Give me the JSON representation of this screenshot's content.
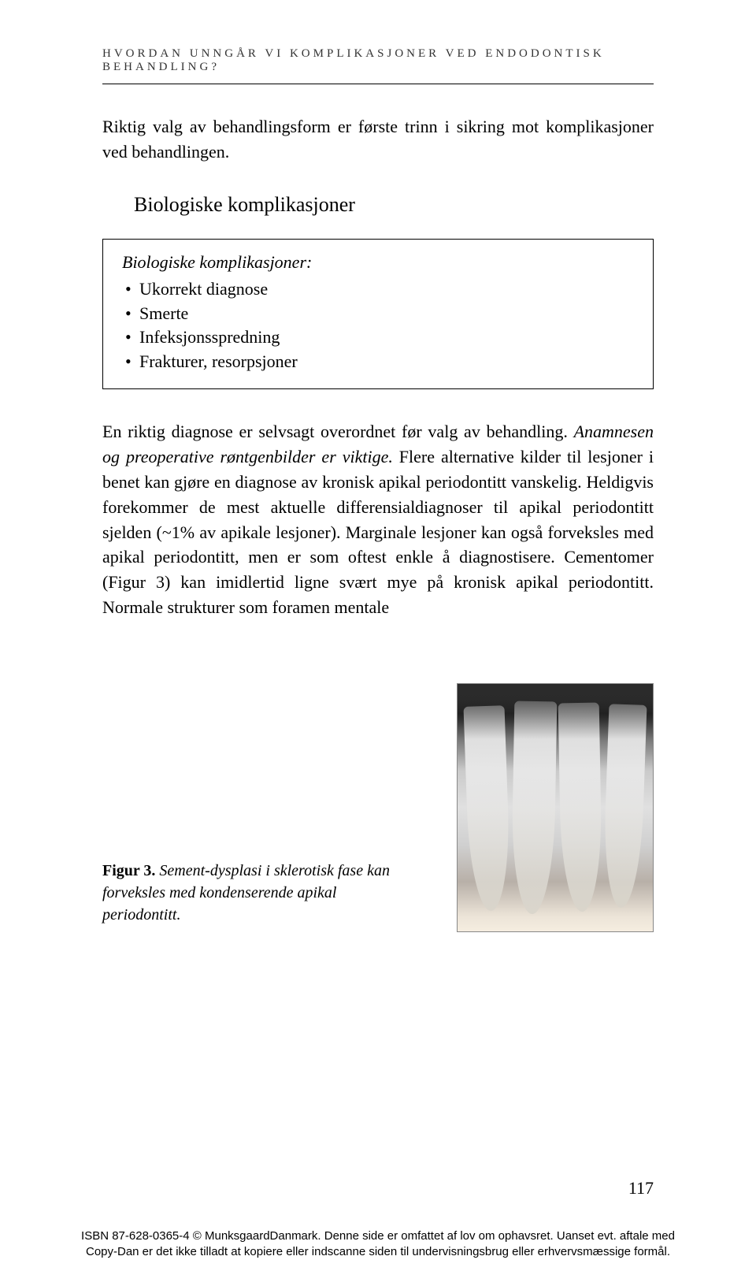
{
  "header": {
    "running_title": "HVORDAN UNNGÅR VI KOMPLIKASJONER VED ENDODONTISK BEHANDLING?"
  },
  "intro_paragraph": "Riktig valg av behandlingsform er første trinn i sikring mot komplikasjoner ved behandlingen.",
  "section": {
    "heading": "Biologiske komplikasjoner",
    "box_title": "Biologiske komplikasjoner:",
    "box_items": [
      "Ukorrekt diagnose",
      "Smerte",
      "Infeksjonsspredning",
      "Frakturer, resorpsjoner"
    ]
  },
  "body": {
    "text_part1": "En riktig diagnose er selvsagt overordnet før valg av behandling. ",
    "text_italic": "Anamnesen og preoperative røntgenbilder er viktige.",
    "text_part2": " Flere alternative kilder til lesjoner i benet kan gjøre en diagnose av kronisk apikal periodontitt vanskelig. Heldigvis forekommer de mest aktuelle differensialdiagnoser til apikal periodontitt sjelden (~1% av apikale lesjoner). Marginale lesjoner kan også forveksles med apikal periodontitt, men er som oftest enkle å diagnostisere. Cementomer (Figur 3) kan imidlertid ligne svært mye på kronisk apikal periodontitt. Normale strukturer som foramen mentale"
  },
  "figure": {
    "label": "Figur 3.",
    "caption": " Sement-dysplasi i sklerotisk fase kan forveksles med kondenserende apikal periodontitt."
  },
  "page_number": "117",
  "footer": {
    "line1": "ISBN 87-628-0365-4 © MunksgaardDanmark. Denne side er omfattet af lov om ophavsret. Uanset evt. aftale med",
    "line2": "Copy-Dan er det ikke tilladt at kopiere eller indscanne siden til undervisningsbrug eller erhvervsmæssige formål."
  },
  "colors": {
    "text": "#000000",
    "background": "#ffffff",
    "rule": "#000000"
  },
  "typography": {
    "body_fontsize": 22,
    "header_fontsize": 15,
    "heading_fontsize": 26,
    "caption_fontsize": 20,
    "footer_fontsize": 15
  }
}
